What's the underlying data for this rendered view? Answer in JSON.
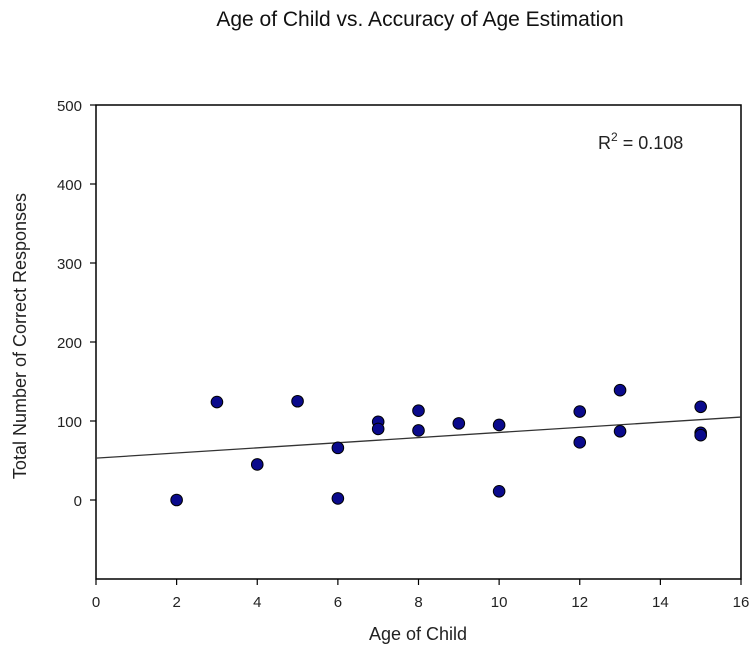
{
  "chart_data": {
    "type": "scatter",
    "title": "Age of Child vs. Accuracy of Age Estimation",
    "xlabel": "Age of Child",
    "ylabel": "Total Number of Correct Responses",
    "xlim": [
      0,
      16
    ],
    "ylim": [
      -100,
      500
    ],
    "xticks": [
      0,
      2,
      4,
      6,
      8,
      10,
      12,
      14,
      16
    ],
    "yticks": [
      0,
      100,
      200,
      300,
      400,
      500
    ],
    "grid": false,
    "annotation": {
      "prefix": "R",
      "superscript": "2",
      "suffix": " = 0.108"
    },
    "points": [
      {
        "x": 2,
        "y": 0
      },
      {
        "x": 3,
        "y": 124
      },
      {
        "x": 4,
        "y": 45
      },
      {
        "x": 5,
        "y": 125
      },
      {
        "x": 6,
        "y": 66
      },
      {
        "x": 6,
        "y": 2
      },
      {
        "x": 7,
        "y": 99
      },
      {
        "x": 7,
        "y": 90
      },
      {
        "x": 8,
        "y": 113
      },
      {
        "x": 8,
        "y": 88
      },
      {
        "x": 9,
        "y": 97
      },
      {
        "x": 10,
        "y": 95
      },
      {
        "x": 10,
        "y": 11
      },
      {
        "x": 12,
        "y": 112
      },
      {
        "x": 12,
        "y": 73
      },
      {
        "x": 13,
        "y": 139
      },
      {
        "x": 13,
        "y": 87
      },
      {
        "x": 15,
        "y": 118
      },
      {
        "x": 15,
        "y": 85
      },
      {
        "x": 15,
        "y": 82
      }
    ],
    "trendline": {
      "x": [
        0,
        16
      ],
      "y": [
        53,
        105
      ]
    },
    "colors": {
      "point_fill": "#0a0a8c",
      "point_stroke": "#000000",
      "line": "#333333"
    }
  }
}
